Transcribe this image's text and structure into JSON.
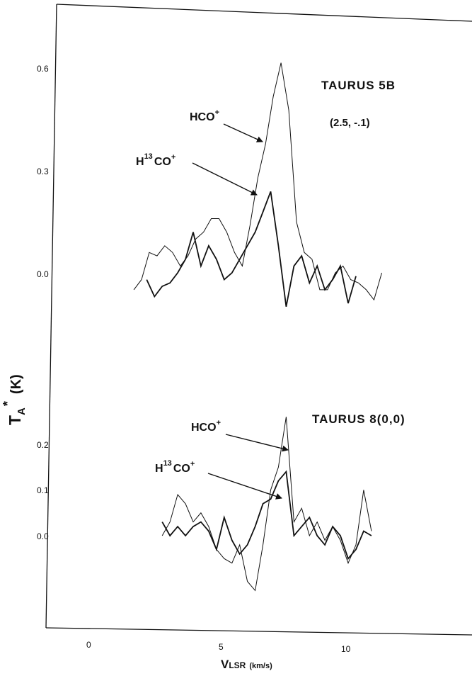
{
  "chart_data": [
    {
      "type": "line",
      "panel": "upper",
      "title": "TAURUS  5B",
      "subtitle": "(2.5, -.1)",
      "ylabel": "TA* (K)",
      "xlabel": "VLSR (km/s)",
      "yticks": [
        "0.6",
        "0.3",
        "0.0"
      ],
      "series": [
        {
          "name": "HCO+",
          "x": [
            1.7,
            2.0,
            2.3,
            2.6,
            2.9,
            3.2,
            3.5,
            3.8,
            4.1,
            4.4,
            4.7,
            5.0,
            5.3,
            5.6,
            5.9,
            6.2,
            6.5,
            6.8,
            7.1,
            7.4,
            7.7,
            8.0,
            8.3,
            8.6,
            8.9,
            9.2,
            9.5,
            9.8,
            10.1,
            10.4,
            10.7,
            11.0,
            11.3
          ],
          "values": [
            -0.05,
            -0.02,
            0.06,
            0.05,
            0.08,
            0.06,
            0.02,
            0.05,
            0.1,
            0.12,
            0.16,
            0.16,
            0.12,
            0.06,
            0.02,
            0.14,
            0.28,
            0.38,
            0.52,
            0.62,
            0.48,
            0.15,
            0.06,
            0.04,
            -0.05,
            -0.05,
            0.0,
            0.02,
            -0.02,
            -0.03,
            -0.05,
            -0.08,
            0.0
          ]
        },
        {
          "name": "H13CO+",
          "x": [
            2.2,
            2.5,
            2.8,
            3.1,
            3.4,
            3.7,
            4.0,
            4.3,
            4.6,
            4.9,
            5.2,
            5.5,
            5.8,
            6.1,
            6.4,
            6.7,
            7.0,
            7.3,
            7.6,
            7.9,
            8.2,
            8.5,
            8.8,
            9.1,
            9.4,
            9.7,
            10.0,
            10.3
          ],
          "values": [
            -0.02,
            -0.07,
            -0.04,
            -0.03,
            0.0,
            0.04,
            0.12,
            0.02,
            0.08,
            0.04,
            -0.02,
            0.0,
            0.04,
            0.08,
            0.12,
            0.18,
            0.24,
            0.08,
            -0.1,
            0.02,
            0.05,
            -0.03,
            0.02,
            -0.05,
            -0.02,
            0.02,
            -0.09,
            -0.01
          ]
        }
      ]
    },
    {
      "type": "line",
      "panel": "lower",
      "title": "TAURUS 8(0,0)",
      "yticks": [
        "0.2",
        "0.1",
        "0.0"
      ],
      "xticks": [
        "0",
        "5",
        "10"
      ],
      "series": [
        {
          "name": "HCO+",
          "x": [
            2.8,
            3.1,
            3.4,
            3.7,
            4.0,
            4.3,
            4.6,
            4.9,
            5.2,
            5.5,
            5.8,
            6.1,
            6.4,
            6.7,
            7.0,
            7.3,
            7.6,
            7.9,
            8.2,
            8.5,
            8.8,
            9.1,
            9.4,
            9.7,
            10.0,
            10.3,
            10.6,
            10.9
          ],
          "values": [
            0.0,
            0.03,
            0.09,
            0.07,
            0.03,
            0.05,
            0.02,
            -0.03,
            -0.05,
            -0.06,
            -0.02,
            -0.1,
            -0.12,
            -0.02,
            0.1,
            0.15,
            0.26,
            0.03,
            0.06,
            0.0,
            0.03,
            -0.01,
            0.02,
            -0.01,
            -0.06,
            -0.02,
            0.1,
            0.01
          ]
        },
        {
          "name": "H13CO+",
          "x": [
            2.8,
            3.1,
            3.4,
            3.7,
            4.0,
            4.3,
            4.6,
            4.9,
            5.2,
            5.5,
            5.8,
            6.1,
            6.4,
            6.7,
            7.0,
            7.3,
            7.6,
            7.9,
            8.2,
            8.5,
            8.8,
            9.1,
            9.4,
            9.7,
            10.0,
            10.3,
            10.6,
            10.9
          ],
          "values": [
            0.03,
            0.0,
            0.02,
            0.0,
            0.02,
            0.03,
            0.01,
            -0.03,
            0.04,
            -0.01,
            -0.04,
            -0.02,
            0.02,
            0.07,
            0.08,
            0.12,
            0.14,
            0.0,
            0.02,
            0.04,
            0.0,
            -0.02,
            0.02,
            0.0,
            -0.05,
            -0.03,
            0.01,
            0.0
          ]
        }
      ]
    }
  ],
  "labels": {
    "upper": {
      "hco_main": "HCO",
      "hco_sup": "+",
      "h13_h": "H",
      "h13_sup13": "13",
      "h13_co": "CO",
      "h13_sup": "+"
    },
    "lower": {
      "hco_main": "HCO",
      "hco_sup": "+",
      "h13_h": "H",
      "h13_sup13": "13",
      "h13_co": "CO",
      "h13_sup": "+"
    },
    "ylabel_main": "T",
    "ylabel_sub": "A",
    "ylabel_star": "*",
    "ylabel_unit": "(K)",
    "xlabel_main": "V",
    "xlabel_sub": "LSR",
    "xlabel_unit": "(km/s)"
  }
}
